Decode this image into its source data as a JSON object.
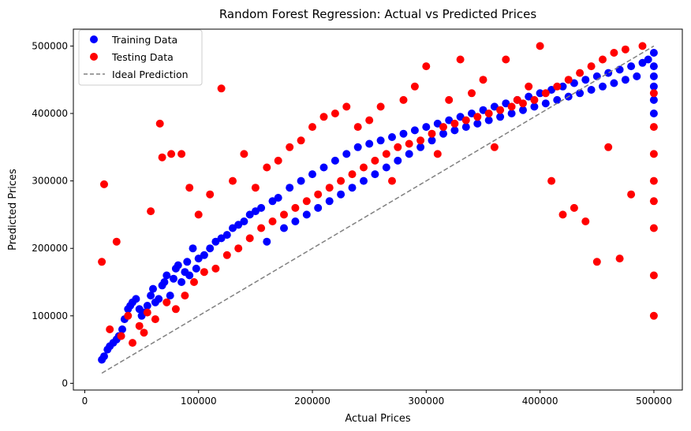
{
  "chart_data": {
    "type": "scatter",
    "title": "Random Forest Regression: Actual vs Predicted Prices",
    "xlabel": "Actual Prices",
    "ylabel": "Predicted Prices",
    "xlim": [
      -10000,
      525000
    ],
    "ylim": [
      -10000,
      525000
    ],
    "xticks": [
      0,
      100000,
      200000,
      300000,
      400000,
      500000
    ],
    "yticks": [
      0,
      100000,
      200000,
      300000,
      400000,
      500000
    ],
    "grid": false,
    "legend_position": "top-left",
    "series": [
      {
        "name": "Training Data",
        "color": "#0000ff",
        "kind": "points",
        "x": [
          15000,
          17000,
          20000,
          22000,
          25000,
          28000,
          30000,
          33000,
          35000,
          38000,
          40000,
          42000,
          45000,
          48000,
          50000,
          52000,
          55000,
          58000,
          60000,
          62000,
          65000,
          68000,
          70000,
          72000,
          75000,
          78000,
          80000,
          82000,
          85000,
          88000,
          90000,
          92000,
          95000,
          98000,
          100000,
          105000,
          110000,
          115000,
          120000,
          125000,
          130000,
          135000,
          140000,
          145000,
          150000,
          155000,
          160000,
          165000,
          170000,
          175000,
          180000,
          185000,
          190000,
          195000,
          200000,
          205000,
          210000,
          215000,
          220000,
          225000,
          230000,
          235000,
          240000,
          245000,
          250000,
          255000,
          260000,
          265000,
          270000,
          275000,
          280000,
          285000,
          290000,
          295000,
          300000,
          305000,
          310000,
          315000,
          320000,
          325000,
          330000,
          335000,
          340000,
          345000,
          350000,
          355000,
          360000,
          365000,
          370000,
          375000,
          380000,
          385000,
          390000,
          395000,
          400000,
          405000,
          410000,
          415000,
          420000,
          425000,
          430000,
          435000,
          440000,
          445000,
          450000,
          455000,
          460000,
          465000,
          470000,
          475000,
          480000,
          485000,
          490000,
          495000,
          500001,
          500001,
          500001,
          500001,
          500001,
          500001
        ],
        "y": [
          35000,
          40000,
          50000,
          55000,
          60000,
          65000,
          70000,
          80000,
          95000,
          110000,
          115000,
          120000,
          125000,
          110000,
          100000,
          105000,
          115000,
          130000,
          140000,
          120000,
          125000,
          145000,
          150000,
          160000,
          130000,
          155000,
          170000,
          175000,
          150000,
          165000,
          180000,
          160000,
          200000,
          170000,
          185000,
          190000,
          200000,
          210000,
          215000,
          220000,
          230000,
          235000,
          240000,
          250000,
          255000,
          260000,
          210000,
          270000,
          275000,
          230000,
          290000,
          240000,
          300000,
          250000,
          310000,
          260000,
          320000,
          270000,
          330000,
          280000,
          340000,
          290000,
          350000,
          300000,
          355000,
          310000,
          360000,
          320000,
          365000,
          330000,
          370000,
          340000,
          375000,
          350000,
          380000,
          360000,
          385000,
          370000,
          390000,
          375000,
          395000,
          380000,
          400000,
          385000,
          405000,
          390000,
          410000,
          395000,
          415000,
          400000,
          420000,
          405000,
          425000,
          410000,
          430000,
          415000,
          435000,
          420000,
          440000,
          425000,
          445000,
          430000,
          450000,
          435000,
          455000,
          440000,
          460000,
          445000,
          465000,
          450000,
          470000,
          455000,
          475000,
          480000,
          490000,
          470000,
          455000,
          440000,
          420000,
          400000
        ]
      },
      {
        "name": "Testing Data",
        "color": "#ff0000",
        "kind": "points",
        "x": [
          15000,
          17000,
          22000,
          28000,
          32000,
          38000,
          42000,
          48000,
          52000,
          55000,
          58000,
          62000,
          66000,
          68000,
          72000,
          76000,
          80000,
          85000,
          88000,
          92000,
          96000,
          100000,
          105000,
          110000,
          115000,
          120000,
          125000,
          130000,
          135000,
          140000,
          145000,
          150000,
          155000,
          160000,
          165000,
          170000,
          175000,
          180000,
          185000,
          190000,
          195000,
          200000,
          205000,
          210000,
          215000,
          220000,
          225000,
          230000,
          235000,
          240000,
          245000,
          250000,
          255000,
          260000,
          265000,
          270000,
          275000,
          280000,
          285000,
          290000,
          295000,
          300000,
          305000,
          310000,
          315000,
          320000,
          325000,
          330000,
          335000,
          340000,
          345000,
          350000,
          355000,
          360000,
          365000,
          370000,
          375000,
          380000,
          385000,
          390000,
          395000,
          400000,
          405000,
          410000,
          415000,
          420000,
          425000,
          430000,
          435000,
          440000,
          445000,
          450000,
          455000,
          460000,
          465000,
          470000,
          475000,
          480000,
          490000,
          500001,
          500001,
          500001,
          500001,
          500001,
          500001,
          500001,
          500001
        ],
        "y": [
          180000,
          295000,
          80000,
          210000,
          70000,
          100000,
          60000,
          85000,
          75000,
          105000,
          255000,
          95000,
          385000,
          335000,
          120000,
          340000,
          110000,
          340000,
          130000,
          290000,
          150000,
          250000,
          165000,
          280000,
          170000,
          437000,
          190000,
          300000,
          200000,
          340000,
          215000,
          290000,
          230000,
          320000,
          240000,
          330000,
          250000,
          350000,
          260000,
          360000,
          270000,
          380000,
          280000,
          395000,
          290000,
          400000,
          300000,
          410000,
          310000,
          380000,
          320000,
          390000,
          330000,
          410000,
          340000,
          300000,
          350000,
          420000,
          355000,
          440000,
          360000,
          470000,
          370000,
          340000,
          380000,
          420000,
          385000,
          480000,
          390000,
          430000,
          395000,
          450000,
          400000,
          350000,
          405000,
          480000,
          410000,
          420000,
          415000,
          440000,
          420000,
          500000,
          430000,
          300000,
          440000,
          250000,
          450000,
          260000,
          460000,
          240000,
          470000,
          180000,
          480000,
          350000,
          490000,
          185000,
          495000,
          280000,
          500000,
          100000,
          160000,
          230000,
          270000,
          300000,
          340000,
          380000,
          430000
        ]
      },
      {
        "name": "Ideal Prediction",
        "color": "#808080",
        "kind": "dashed-line",
        "x": [
          14999,
          500001
        ],
        "y": [
          14999,
          500001
        ]
      }
    ]
  }
}
